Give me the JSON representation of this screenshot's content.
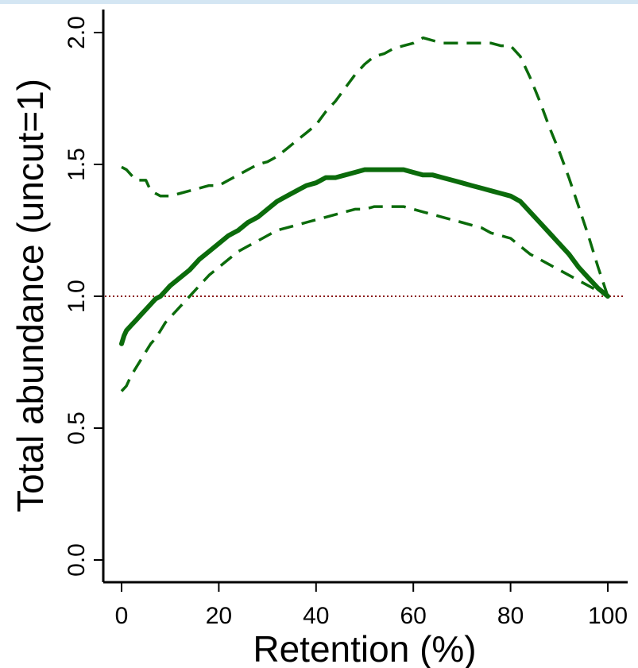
{
  "chart_data": {
    "type": "line",
    "xlabel": "Retention (%)",
    "ylabel": "Total abundance (uncut=1)",
    "xlim": [
      0,
      100
    ],
    "ylim": [
      0,
      2
    ],
    "x_ticks": [
      "0",
      "20",
      "40",
      "60",
      "80",
      "100"
    ],
    "y_ticks": [
      "0.0",
      "0.5",
      "1.0",
      "1.5",
      "2.0"
    ],
    "grid": false,
    "reference_line": {
      "y": 1.0,
      "style": "dotted",
      "color": "#8b1a1a"
    },
    "series": [
      {
        "style": "solid",
        "color": "#0b6b0b",
        "x": [
          0,
          0.5,
          1,
          2,
          3,
          4,
          5,
          6,
          7,
          8,
          9,
          10,
          12,
          14,
          16,
          18,
          20,
          22,
          24,
          26,
          28,
          30,
          32,
          34,
          36,
          38,
          40,
          42,
          44,
          46,
          48,
          50,
          52,
          54,
          56,
          58,
          60,
          62,
          64,
          66,
          68,
          70,
          72,
          74,
          76,
          78,
          80,
          82,
          84,
          86,
          88,
          90,
          92,
          94,
          96,
          98,
          100
        ],
        "y": [
          0.82,
          0.85,
          0.87,
          0.89,
          0.91,
          0.93,
          0.95,
          0.97,
          0.99,
          1.0,
          1.02,
          1.04,
          1.07,
          1.1,
          1.14,
          1.17,
          1.2,
          1.23,
          1.25,
          1.28,
          1.3,
          1.33,
          1.36,
          1.38,
          1.4,
          1.42,
          1.43,
          1.45,
          1.45,
          1.46,
          1.47,
          1.48,
          1.48,
          1.48,
          1.48,
          1.48,
          1.47,
          1.46,
          1.46,
          1.45,
          1.44,
          1.43,
          1.42,
          1.41,
          1.4,
          1.39,
          1.38,
          1.36,
          1.32,
          1.28,
          1.24,
          1.2,
          1.16,
          1.11,
          1.07,
          1.03,
          1.0
        ]
      },
      {
        "style": "dashed",
        "color": "#0b6b0b",
        "x": [
          0,
          1,
          2,
          3,
          4,
          5,
          6,
          7,
          8,
          9,
          10,
          12,
          14,
          16,
          18,
          20,
          22,
          24,
          26,
          28,
          30,
          32,
          34,
          36,
          38,
          40,
          42,
          44,
          46,
          48,
          50,
          52,
          54,
          56,
          58,
          60,
          62,
          64,
          66,
          68,
          70,
          72,
          74,
          76,
          78,
          80,
          82,
          84,
          86,
          88,
          90,
          92,
          94,
          96,
          98,
          100
        ],
        "y": [
          0.64,
          0.66,
          0.7,
          0.73,
          0.76,
          0.79,
          0.82,
          0.84,
          0.87,
          0.9,
          0.92,
          0.96,
          1.0,
          1.04,
          1.08,
          1.11,
          1.14,
          1.17,
          1.19,
          1.21,
          1.23,
          1.25,
          1.26,
          1.27,
          1.28,
          1.29,
          1.3,
          1.31,
          1.32,
          1.33,
          1.33,
          1.34,
          1.34,
          1.34,
          1.34,
          1.33,
          1.32,
          1.31,
          1.3,
          1.29,
          1.28,
          1.27,
          1.26,
          1.24,
          1.23,
          1.22,
          1.19,
          1.16,
          1.14,
          1.12,
          1.1,
          1.08,
          1.06,
          1.04,
          1.02,
          1.0
        ]
      },
      {
        "style": "dashed",
        "color": "#0b6b0b",
        "x": [
          0,
          1,
          2,
          3,
          4,
          5,
          6,
          7,
          8,
          9,
          10,
          12,
          14,
          16,
          18,
          20,
          22,
          24,
          26,
          28,
          30,
          32,
          34,
          36,
          38,
          40,
          42,
          44,
          46,
          48,
          50,
          52,
          54,
          56,
          58,
          60,
          62,
          64,
          66,
          68,
          70,
          72,
          74,
          76,
          78,
          80,
          82,
          84,
          86,
          88,
          90,
          92,
          94,
          96,
          98,
          100
        ],
        "y": [
          1.49,
          1.48,
          1.46,
          1.44,
          1.44,
          1.44,
          1.4,
          1.39,
          1.38,
          1.38,
          1.38,
          1.39,
          1.4,
          1.41,
          1.42,
          1.42,
          1.44,
          1.46,
          1.48,
          1.5,
          1.51,
          1.53,
          1.56,
          1.59,
          1.62,
          1.65,
          1.7,
          1.74,
          1.79,
          1.84,
          1.88,
          1.91,
          1.92,
          1.94,
          1.95,
          1.96,
          1.98,
          1.97,
          1.96,
          1.96,
          1.96,
          1.96,
          1.96,
          1.96,
          1.95,
          1.95,
          1.91,
          1.83,
          1.74,
          1.64,
          1.55,
          1.45,
          1.34,
          1.23,
          1.11,
          1.0
        ]
      }
    ]
  }
}
